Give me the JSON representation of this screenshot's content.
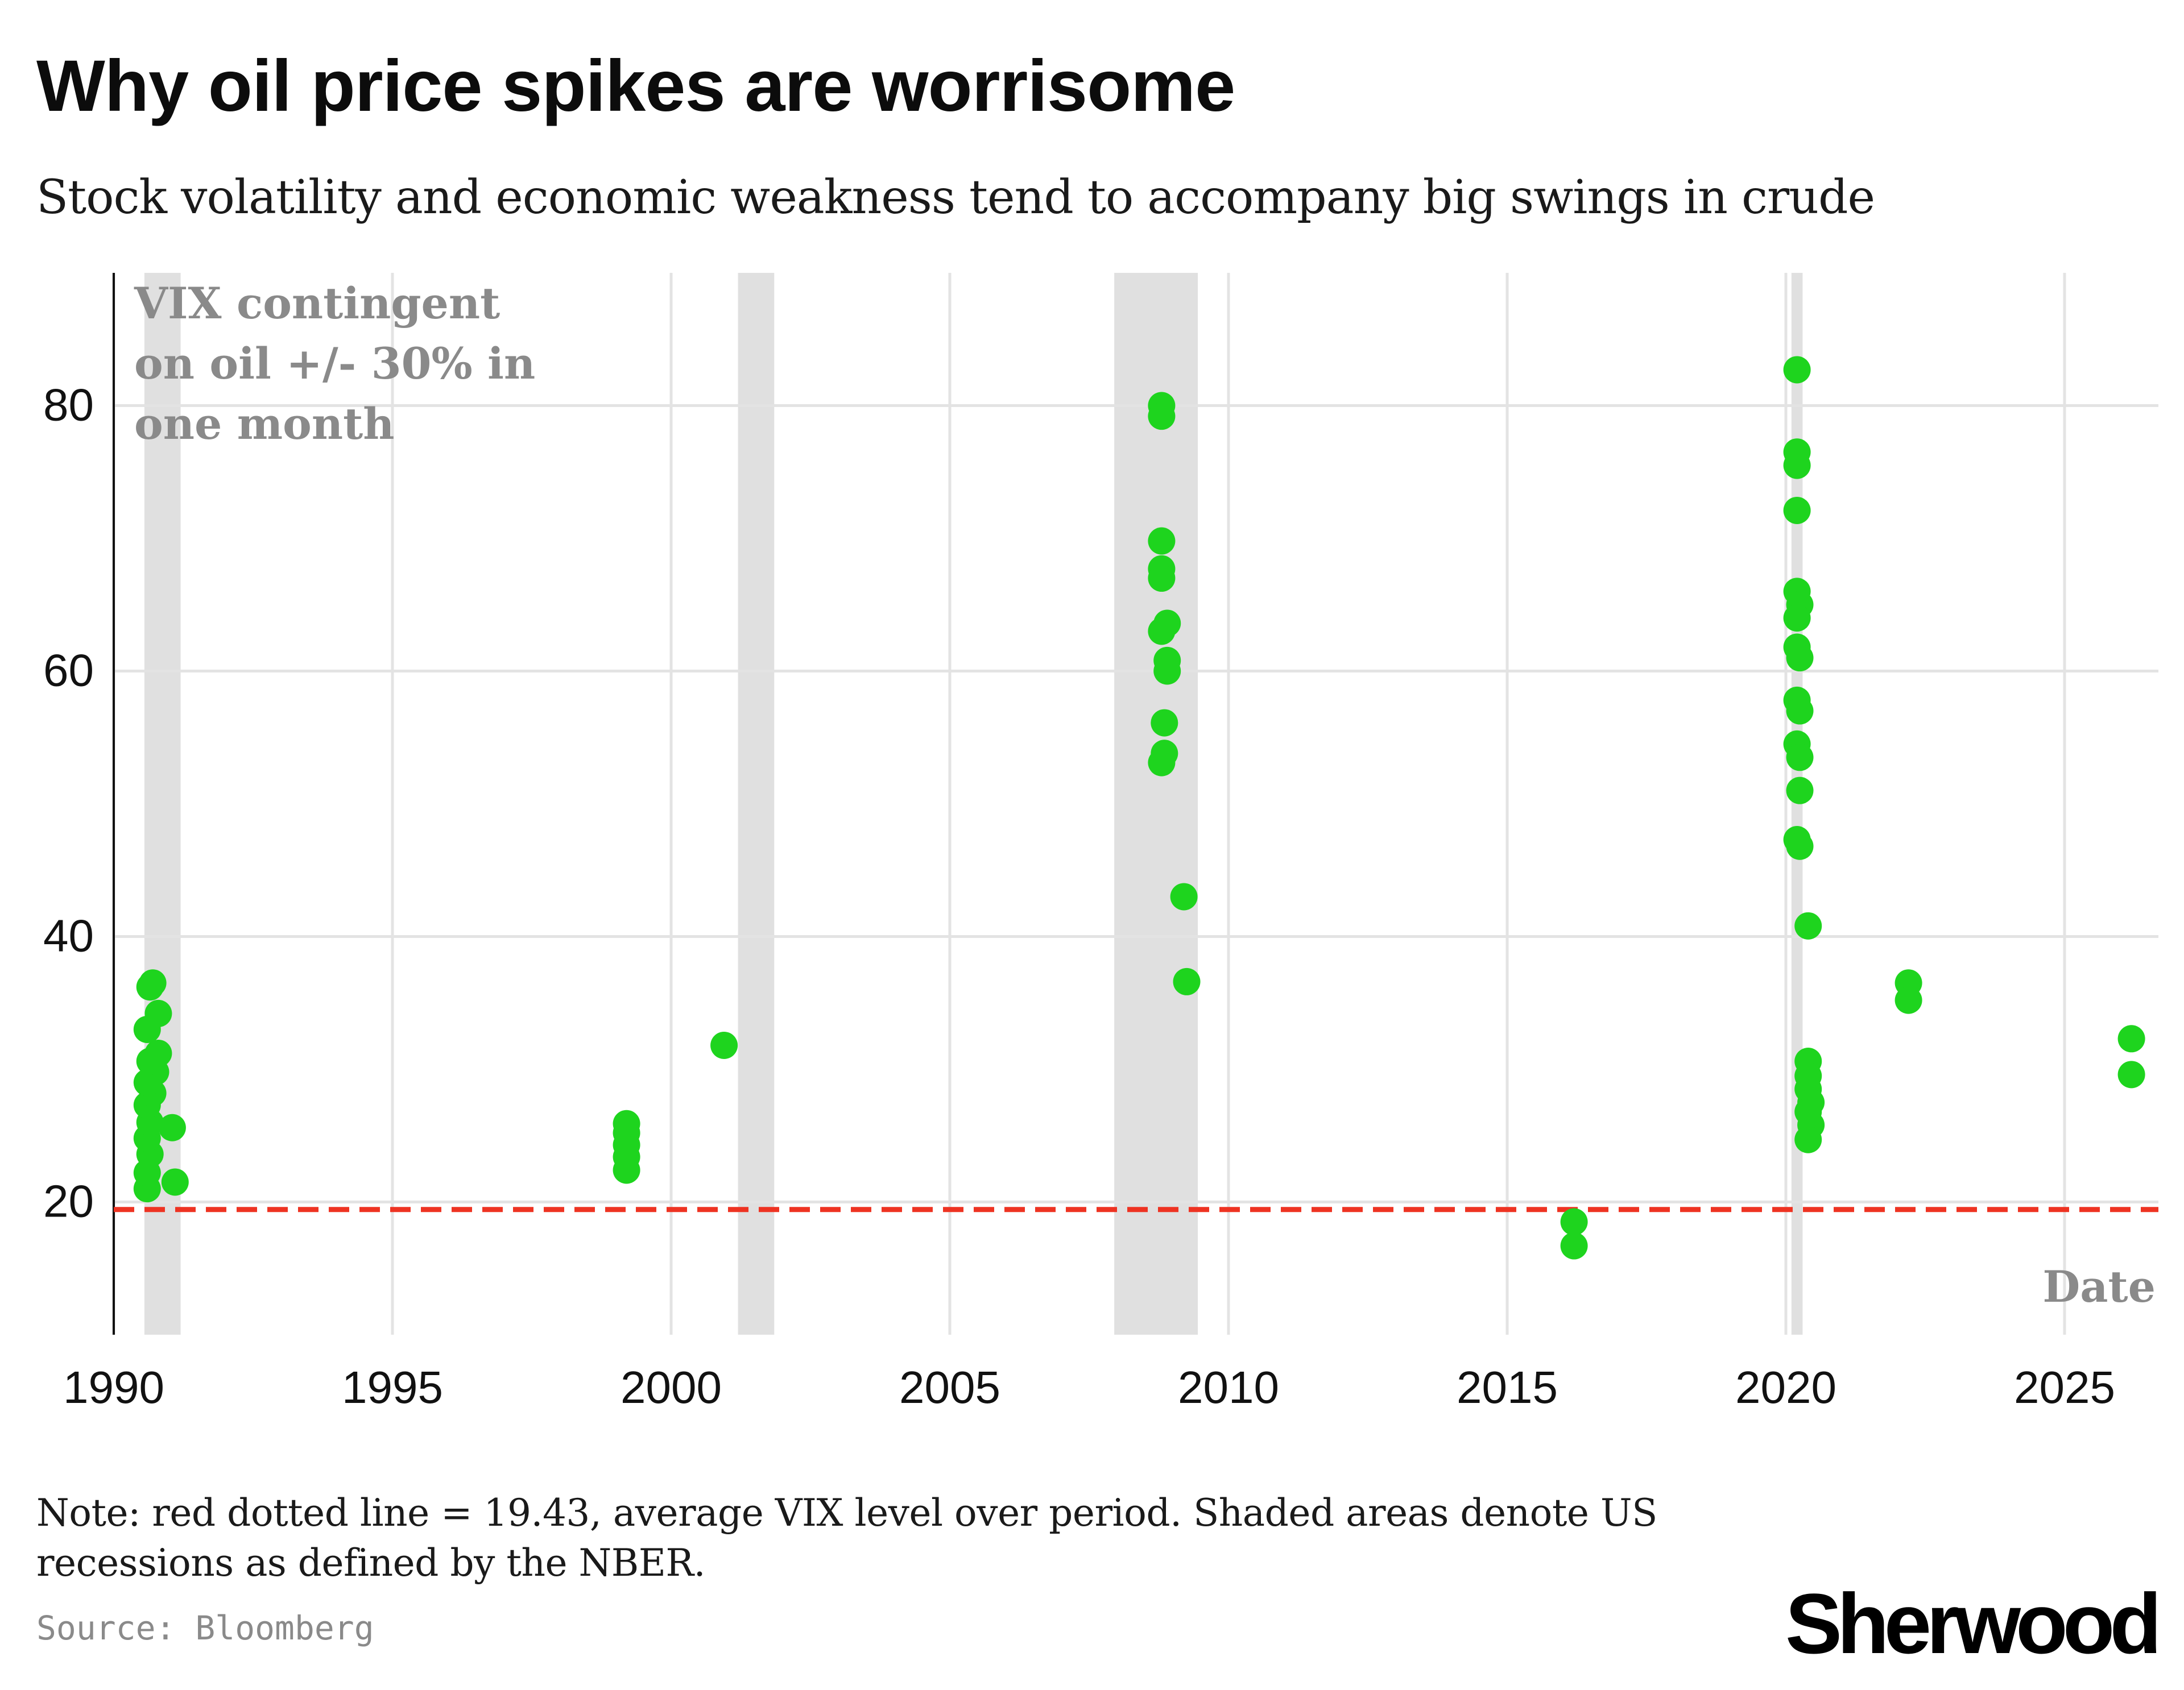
{
  "header": {
    "title": "Why oil price spikes are worrisome",
    "subtitle": "Stock volatility and economic weakness tend to accompany big swings in crude"
  },
  "footer": {
    "note": "Note: red dotted line = 19.43, average VIX level over period. Shaded areas denote US recessions as defined by the NBER.",
    "source": "Source: Bloomberg",
    "logo": "Sherwood"
  },
  "colors": {
    "points": "#1ed41e",
    "average_line": "#ee3322",
    "recession_band": "#e0e0e0",
    "grid": "#e3e3e3",
    "axis": "#111111",
    "annotation": "#8a8a8a"
  },
  "chart_data": {
    "type": "scatter",
    "annotation": "VIX contingent on oil +/- 30% in one month",
    "xlabel": "Date",
    "ylabel": "",
    "xlim": [
      1990,
      2026.6
    ],
    "ylim": [
      10,
      90
    ],
    "x_ticks": [
      1990,
      1995,
      2000,
      2005,
      2010,
      2015,
      2020,
      2025
    ],
    "y_ticks": [
      20,
      40,
      60,
      80
    ],
    "grid": true,
    "reference_line": {
      "y": 19.43
    },
    "recessions": [
      {
        "start": 1990.55,
        "end": 1991.2
      },
      {
        "start": 2001.2,
        "end": 2001.85
      },
      {
        "start": 2007.95,
        "end": 2009.45
      },
      {
        "start": 2020.1,
        "end": 2020.3
      }
    ],
    "series": [
      {
        "points": [
          {
            "x": 1990.6,
            "y": 21.0
          },
          {
            "x": 1990.6,
            "y": 22.2
          },
          {
            "x": 1990.65,
            "y": 23.6
          },
          {
            "x": 1990.6,
            "y": 24.8
          },
          {
            "x": 1990.65,
            "y": 26.0
          },
          {
            "x": 1990.6,
            "y": 27.3
          },
          {
            "x": 1990.7,
            "y": 28.2
          },
          {
            "x": 1990.6,
            "y": 29.0
          },
          {
            "x": 1990.75,
            "y": 29.8
          },
          {
            "x": 1990.65,
            "y": 30.6
          },
          {
            "x": 1990.8,
            "y": 31.2
          },
          {
            "x": 1990.6,
            "y": 33.0
          },
          {
            "x": 1990.8,
            "y": 34.2
          },
          {
            "x": 1990.65,
            "y": 36.2
          },
          {
            "x": 1990.7,
            "y": 36.5
          },
          {
            "x": 1991.05,
            "y": 25.6
          },
          {
            "x": 1991.1,
            "y": 21.5
          },
          {
            "x": 1999.2,
            "y": 22.4
          },
          {
            "x": 1999.2,
            "y": 23.4
          },
          {
            "x": 1999.2,
            "y": 24.3
          },
          {
            "x": 1999.2,
            "y": 25.2
          },
          {
            "x": 1999.2,
            "y": 25.9
          },
          {
            "x": 2000.95,
            "y": 31.8
          },
          {
            "x": 2008.8,
            "y": 80.0
          },
          {
            "x": 2008.8,
            "y": 79.2
          },
          {
            "x": 2008.8,
            "y": 69.8
          },
          {
            "x": 2008.8,
            "y": 67.7
          },
          {
            "x": 2008.8,
            "y": 67.0
          },
          {
            "x": 2008.9,
            "y": 63.6
          },
          {
            "x": 2008.8,
            "y": 63.0
          },
          {
            "x": 2008.9,
            "y": 60.8
          },
          {
            "x": 2008.9,
            "y": 60.0
          },
          {
            "x": 2008.85,
            "y": 56.1
          },
          {
            "x": 2008.85,
            "y": 53.8
          },
          {
            "x": 2008.8,
            "y": 53.1
          },
          {
            "x": 2009.2,
            "y": 43.0
          },
          {
            "x": 2009.25,
            "y": 36.6
          },
          {
            "x": 2016.2,
            "y": 18.5
          },
          {
            "x": 2016.2,
            "y": 16.7
          },
          {
            "x": 2020.2,
            "y": 82.7
          },
          {
            "x": 2020.2,
            "y": 76.5
          },
          {
            "x": 2020.2,
            "y": 75.5
          },
          {
            "x": 2020.2,
            "y": 72.1
          },
          {
            "x": 2020.2,
            "y": 66.0
          },
          {
            "x": 2020.25,
            "y": 65.0
          },
          {
            "x": 2020.2,
            "y": 64.0
          },
          {
            "x": 2020.2,
            "y": 61.8
          },
          {
            "x": 2020.25,
            "y": 61.0
          },
          {
            "x": 2020.2,
            "y": 57.8
          },
          {
            "x": 2020.25,
            "y": 57.0
          },
          {
            "x": 2020.2,
            "y": 54.5
          },
          {
            "x": 2020.25,
            "y": 53.5
          },
          {
            "x": 2020.25,
            "y": 51.0
          },
          {
            "x": 2020.2,
            "y": 47.3
          },
          {
            "x": 2020.25,
            "y": 46.8
          },
          {
            "x": 2020.4,
            "y": 40.8
          },
          {
            "x": 2020.4,
            "y": 30.6
          },
          {
            "x": 2020.4,
            "y": 29.5
          },
          {
            "x": 2020.4,
            "y": 28.5
          },
          {
            "x": 2020.45,
            "y": 27.5
          },
          {
            "x": 2020.4,
            "y": 26.8
          },
          {
            "x": 2020.45,
            "y": 25.8
          },
          {
            "x": 2020.4,
            "y": 24.7
          },
          {
            "x": 2022.2,
            "y": 36.5
          },
          {
            "x": 2022.2,
            "y": 35.2
          },
          {
            "x": 2026.2,
            "y": 32.3
          },
          {
            "x": 2026.2,
            "y": 29.6
          }
        ]
      }
    ]
  }
}
